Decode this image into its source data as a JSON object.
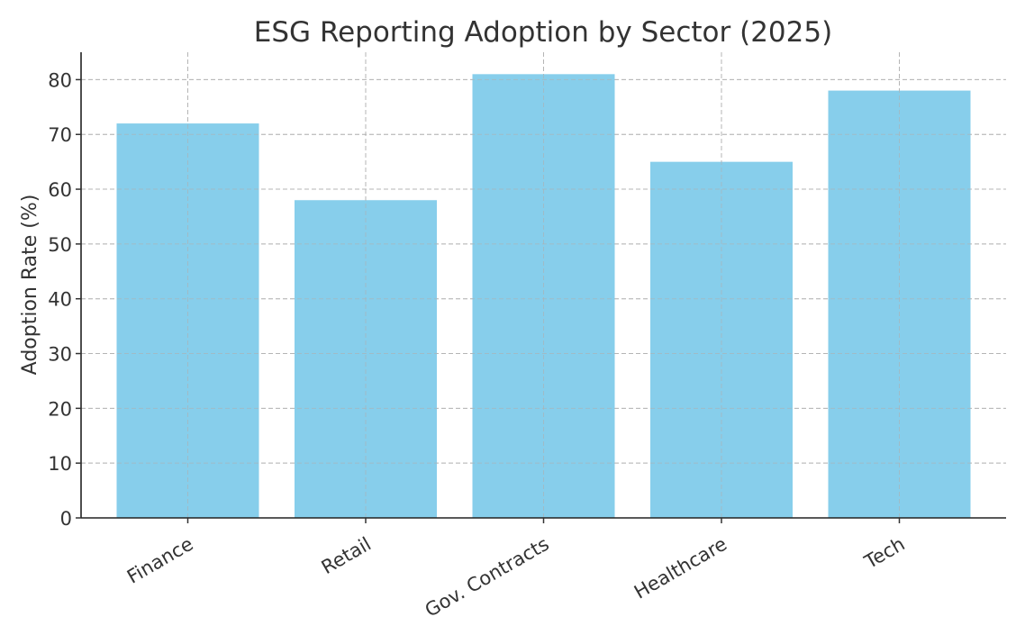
{
  "chart_data": {
    "type": "bar",
    "title": "ESG Reporting Adoption by Sector (2025)",
    "xlabel": "",
    "ylabel": "Adoption Rate (%)",
    "categories": [
      "Finance",
      "Retail",
      "Gov. Contracts",
      "Healthcare",
      "Tech"
    ],
    "values": [
      72,
      58,
      81,
      65,
      78
    ],
    "ylim": [
      0,
      85
    ],
    "yticks": [
      0,
      10,
      20,
      30,
      40,
      50,
      60,
      70,
      80
    ],
    "ytick_labels": [
      "0",
      "10",
      "20",
      "30",
      "40",
      "50",
      "60",
      "70",
      "80"
    ],
    "grid": true,
    "bar_color": "#87ceeb",
    "xtick_rotation": "30"
  }
}
